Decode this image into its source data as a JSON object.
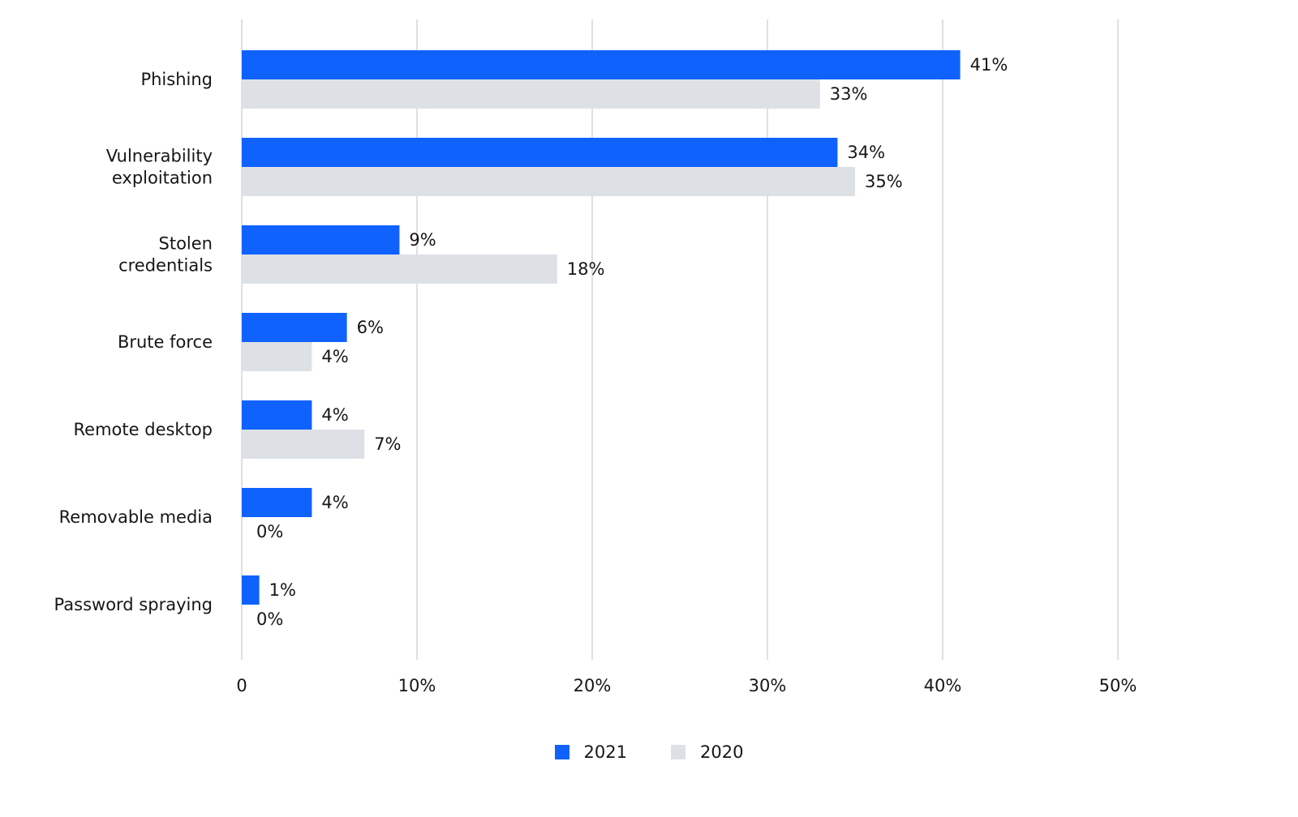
{
  "chart_data": {
    "type": "bar",
    "orientation": "horizontal",
    "categories": [
      [
        "Phishing"
      ],
      [
        "Vulnerability",
        "exploitation"
      ],
      [
        "Stolen",
        "credentials"
      ],
      [
        "Brute force"
      ],
      [
        "Remote desktop"
      ],
      [
        "Removable media"
      ],
      [
        "Password spraying"
      ]
    ],
    "series": [
      {
        "name": "2021",
        "color": "#0f62fe",
        "values": [
          41,
          34,
          9,
          6,
          4,
          4,
          1
        ],
        "labels": [
          "41%",
          "34%",
          "9%",
          "6%",
          "4%",
          "4%",
          "1%"
        ]
      },
      {
        "name": "2020",
        "color": "#dde1e6",
        "values": [
          33,
          35,
          18,
          4,
          7,
          0,
          0
        ],
        "labels": [
          "33%",
          "35%",
          "18%",
          "4%",
          "7%",
          "0%",
          "0%"
        ]
      }
    ],
    "xlim": [
      0,
      50
    ],
    "xticks": [
      0,
      10,
      20,
      30,
      40,
      50
    ],
    "xtick_labels": [
      "0",
      "10%",
      "20%",
      "30%",
      "40%",
      "50%"
    ],
    "grid": true,
    "legend_position": "bottom-center"
  }
}
